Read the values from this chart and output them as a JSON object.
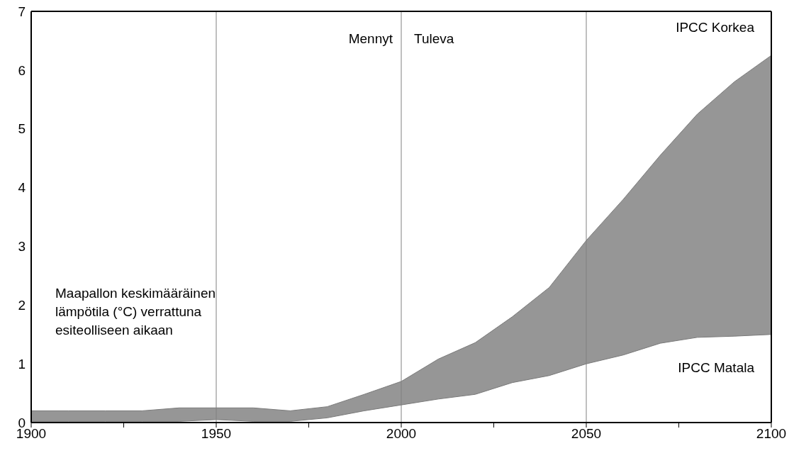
{
  "chart_data": {
    "type": "area",
    "x": [
      1900,
      1910,
      1920,
      1930,
      1940,
      1950,
      1960,
      1970,
      1980,
      1990,
      2000,
      2010,
      2020,
      2030,
      2040,
      2050,
      2060,
      2070,
      2080,
      2090,
      2100
    ],
    "series": [
      {
        "name": "IPCC Korkea",
        "color": "#969696",
        "values": [
          0.2,
          0.2,
          0.2,
          0.2,
          0.25,
          0.25,
          0.25,
          0.2,
          0.27,
          0.48,
          0.7,
          1.08,
          1.36,
          1.8,
          2.3,
          3.1,
          3.8,
          4.55,
          5.25,
          5.8,
          6.25
        ]
      },
      {
        "name": "IPCC Matala",
        "color": "#ffffff",
        "values": [
          0.02,
          0.02,
          0.02,
          0.02,
          0.02,
          0.05,
          0.02,
          0.02,
          0.08,
          0.2,
          0.3,
          0.4,
          0.48,
          0.68,
          0.8,
          1.0,
          1.15,
          1.35,
          1.45,
          1.47,
          1.5
        ]
      }
    ],
    "xlim": [
      1900,
      2100
    ],
    "xticks": [
      1900,
      {
        "value": 1925,
        "label": null
      },
      1950,
      {
        "value": 1975,
        "label": null
      },
      2000,
      {
        "value": 2025,
        "label": null
      },
      2050,
      {
        "value": 2075,
        "label": null
      },
      2100
    ],
    "ylim": [
      0,
      7
    ],
    "yticks": [
      0,
      1,
      2,
      3,
      4,
      5,
      6,
      7
    ],
    "ref_lines": [
      {
        "axis": "x",
        "value": 1950,
        "color": "#808080"
      },
      {
        "axis": "x",
        "value": 2000,
        "color": "#808080"
      },
      {
        "axis": "x",
        "value": 2050,
        "color": "#808080"
      }
    ],
    "annotations": [
      "Maapallon keskimääräinen\nlämpötila (°C) verrattuna\nesiteolliseen aikaan",
      "Mennyt",
      "Tuleva"
    ],
    "grid": false,
    "legend": false
  }
}
